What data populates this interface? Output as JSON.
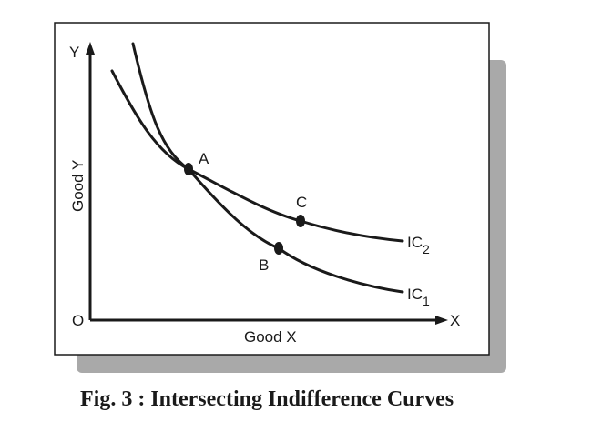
{
  "figure": {
    "caption": "Fig. 3 : Intersecting Indifference Curves",
    "axes": {
      "origin_label": "O",
      "x_axis_letter": "X",
      "y_axis_letter": "Y",
      "x_axis_title": "Good X",
      "y_axis_title": "Good Y"
    },
    "curves": [
      {
        "label": "IC",
        "subscript": "1"
      },
      {
        "label": "IC",
        "subscript": "2"
      }
    ],
    "points": [
      {
        "label": "A"
      },
      {
        "label": "B"
      },
      {
        "label": "C"
      }
    ]
  }
}
